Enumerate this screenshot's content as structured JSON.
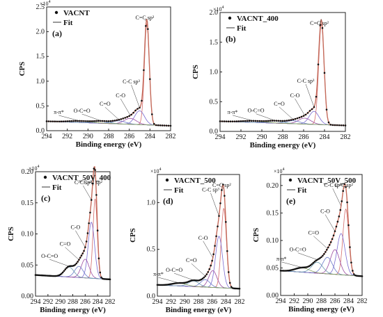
{
  "figure": {
    "xlabel": "Binding energy (eV)",
    "ylabel": "CPS",
    "multiplier": "×10",
    "multiplier_exp": "4",
    "legend_fit": "Fit"
  },
  "colors": {
    "data": "#111111",
    "envelope": "#c46a5a",
    "sp2": "#d46a6a",
    "sp3": "#7a6ad0",
    "co": "#9a4aa0",
    "c_o": "#6a7ac8",
    "o_co": "#6a9ab0",
    "pi": "#86a060",
    "bg": "#7a7a7a"
  },
  "chart_data": [
    {
      "type": "line",
      "panel_label": "(a)",
      "legend": "VACNT",
      "xlim": [
        294,
        282
      ],
      "ylim": [
        0,
        2.5
      ],
      "xticks": [
        294,
        292,
        290,
        288,
        286,
        284,
        282
      ],
      "yticks": [
        "0.0",
        "0.5",
        "1.0",
        "1.5",
        "2.0",
        "2.5"
      ],
      "background": [
        0.1,
        0.19
      ],
      "peaks": [
        {
          "label": "C=C sp²",
          "center": 284.3,
          "fwhm": 0.55,
          "height": 2.05,
          "color_key": "sp2"
        },
        {
          "label": "C-C sp³",
          "center": 285.0,
          "fwhm": 1.1,
          "height": 0.28,
          "color_key": "sp3"
        },
        {
          "label": "C-O",
          "center": 285.9,
          "fwhm": 1.4,
          "height": 0.12,
          "color_key": "co"
        },
        {
          "label": "C=O",
          "center": 287.0,
          "fwhm": 1.6,
          "height": 0.06,
          "color_key": "c_o"
        },
        {
          "label": "O-C=O",
          "center": 288.7,
          "fwhm": 1.8,
          "height": 0.04,
          "color_key": "o_co"
        },
        {
          "label": "π-π*",
          "center": 290.8,
          "fwhm": 2.5,
          "height": 0.03,
          "color_key": "pi"
        }
      ]
    },
    {
      "type": "line",
      "panel_label": "(b)",
      "legend": "VACNT_400",
      "xlim": [
        294,
        282
      ],
      "ylim": [
        0,
        2.0
      ],
      "xticks": [
        294,
        292,
        290,
        288,
        286,
        284,
        282
      ],
      "yticks": [
        "0.0",
        "0.5",
        "1.0",
        "1.5",
        "2.0"
      ],
      "background": [
        0.1,
        0.17
      ],
      "peaks": [
        {
          "label": "C=C sp²",
          "center": 284.3,
          "fwhm": 0.6,
          "height": 1.7,
          "color_key": "sp2"
        },
        {
          "label": "C-C sp³",
          "center": 285.0,
          "fwhm": 1.1,
          "height": 0.22,
          "color_key": "sp3"
        },
        {
          "label": "C-O",
          "center": 285.9,
          "fwhm": 1.4,
          "height": 0.1,
          "color_key": "co"
        },
        {
          "label": "C=O",
          "center": 287.0,
          "fwhm": 1.6,
          "height": 0.05,
          "color_key": "c_o"
        },
        {
          "label": "O-C=O",
          "center": 288.7,
          "fwhm": 1.8,
          "height": 0.035,
          "color_key": "o_co"
        },
        {
          "label": "π-π*",
          "center": 290.8,
          "fwhm": 2.5,
          "height": 0.025,
          "color_key": "pi"
        }
      ]
    },
    {
      "type": "line",
      "panel_label": "(c)",
      "legend": "VACNT_50V_400",
      "xlim": [
        294,
        282
      ],
      "ylim": [
        0,
        0.2
      ],
      "xticks": [
        294,
        292,
        290,
        288,
        286,
        284,
        282
      ],
      "yticks": [
        "0.00",
        "0.05",
        "0.10",
        "0.15",
        "0.20"
      ],
      "background": [
        0.027,
        0.034
      ],
      "peaks": [
        {
          "label": "C=C sp²",
          "center": 284.4,
          "fwhm": 0.8,
          "height": 0.128,
          "color_key": "sp2"
        },
        {
          "label": "C-C sp³",
          "center": 285.0,
          "fwhm": 1.2,
          "height": 0.09,
          "color_key": "sp3"
        },
        {
          "label": "C-O",
          "center": 286.0,
          "fwhm": 1.5,
          "height": 0.03,
          "color_key": "co"
        },
        {
          "label": "C=O",
          "center": 287.0,
          "fwhm": 1.6,
          "height": 0.018,
          "color_key": "c_o"
        },
        {
          "label": "O-C=O",
          "center": 288.6,
          "fwhm": 1.8,
          "height": 0.016,
          "color_key": "o_co"
        }
      ]
    },
    {
      "type": "line",
      "panel_label": "(d)",
      "legend": "VACNT_500",
      "xlim": [
        294,
        282
      ],
      "ylim": [
        0,
        1.3
      ],
      "xticks": [
        294,
        292,
        290,
        288,
        286,
        284,
        282
      ],
      "yticks": [
        "0.0",
        "0.5",
        "1.0"
      ],
      "background": [
        0.08,
        0.12
      ],
      "peaks": [
        {
          "label": "C=C sp²",
          "center": 284.3,
          "fwhm": 0.9,
          "height": 0.85,
          "color_key": "sp2"
        },
        {
          "label": "C-C sp³",
          "center": 285.0,
          "fwhm": 1.2,
          "height": 0.55,
          "color_key": "sp3"
        },
        {
          "label": "C-O",
          "center": 285.9,
          "fwhm": 1.4,
          "height": 0.18,
          "color_key": "co"
        },
        {
          "label": "C=O",
          "center": 287.0,
          "fwhm": 1.6,
          "height": 0.08,
          "color_key": "c_o"
        },
        {
          "label": "O-C=O",
          "center": 288.7,
          "fwhm": 1.8,
          "height": 0.06,
          "color_key": "o_co"
        },
        {
          "label": "π-π*",
          "center": 290.8,
          "fwhm": 2.5,
          "height": 0.03,
          "color_key": "pi"
        }
      ]
    },
    {
      "type": "line",
      "panel_label": "(e)",
      "legend": "VACNT_50V_500",
      "xlim": [
        294,
        282
      ],
      "ylim": [
        0,
        0.22
      ],
      "xticks": [
        294,
        292,
        290,
        288,
        286,
        284,
        282
      ],
      "yticks": [
        "0.00",
        "0.05",
        "0.10",
        "0.15",
        "0.20"
      ],
      "background": [
        0.035,
        0.045
      ],
      "peaks": [
        {
          "label": "C=C sp²",
          "center": 284.4,
          "fwhm": 1.0,
          "height": 0.12,
          "color_key": "sp2"
        },
        {
          "label": "C-C sp³",
          "center": 285.1,
          "fwhm": 1.4,
          "height": 0.075,
          "color_key": "sp3"
        },
        {
          "label": "C-O",
          "center": 286.0,
          "fwhm": 1.6,
          "height": 0.045,
          "color_key": "co"
        },
        {
          "label": "C=O",
          "center": 287.1,
          "fwhm": 1.7,
          "height": 0.03,
          "color_key": "c_o"
        },
        {
          "label": "O-C=O",
          "center": 288.6,
          "fwhm": 1.9,
          "height": 0.02,
          "color_key": "o_co"
        },
        {
          "label": "π-π*",
          "center": 290.8,
          "fwhm": 2.5,
          "height": 0.008,
          "color_key": "pi"
        }
      ]
    }
  ]
}
